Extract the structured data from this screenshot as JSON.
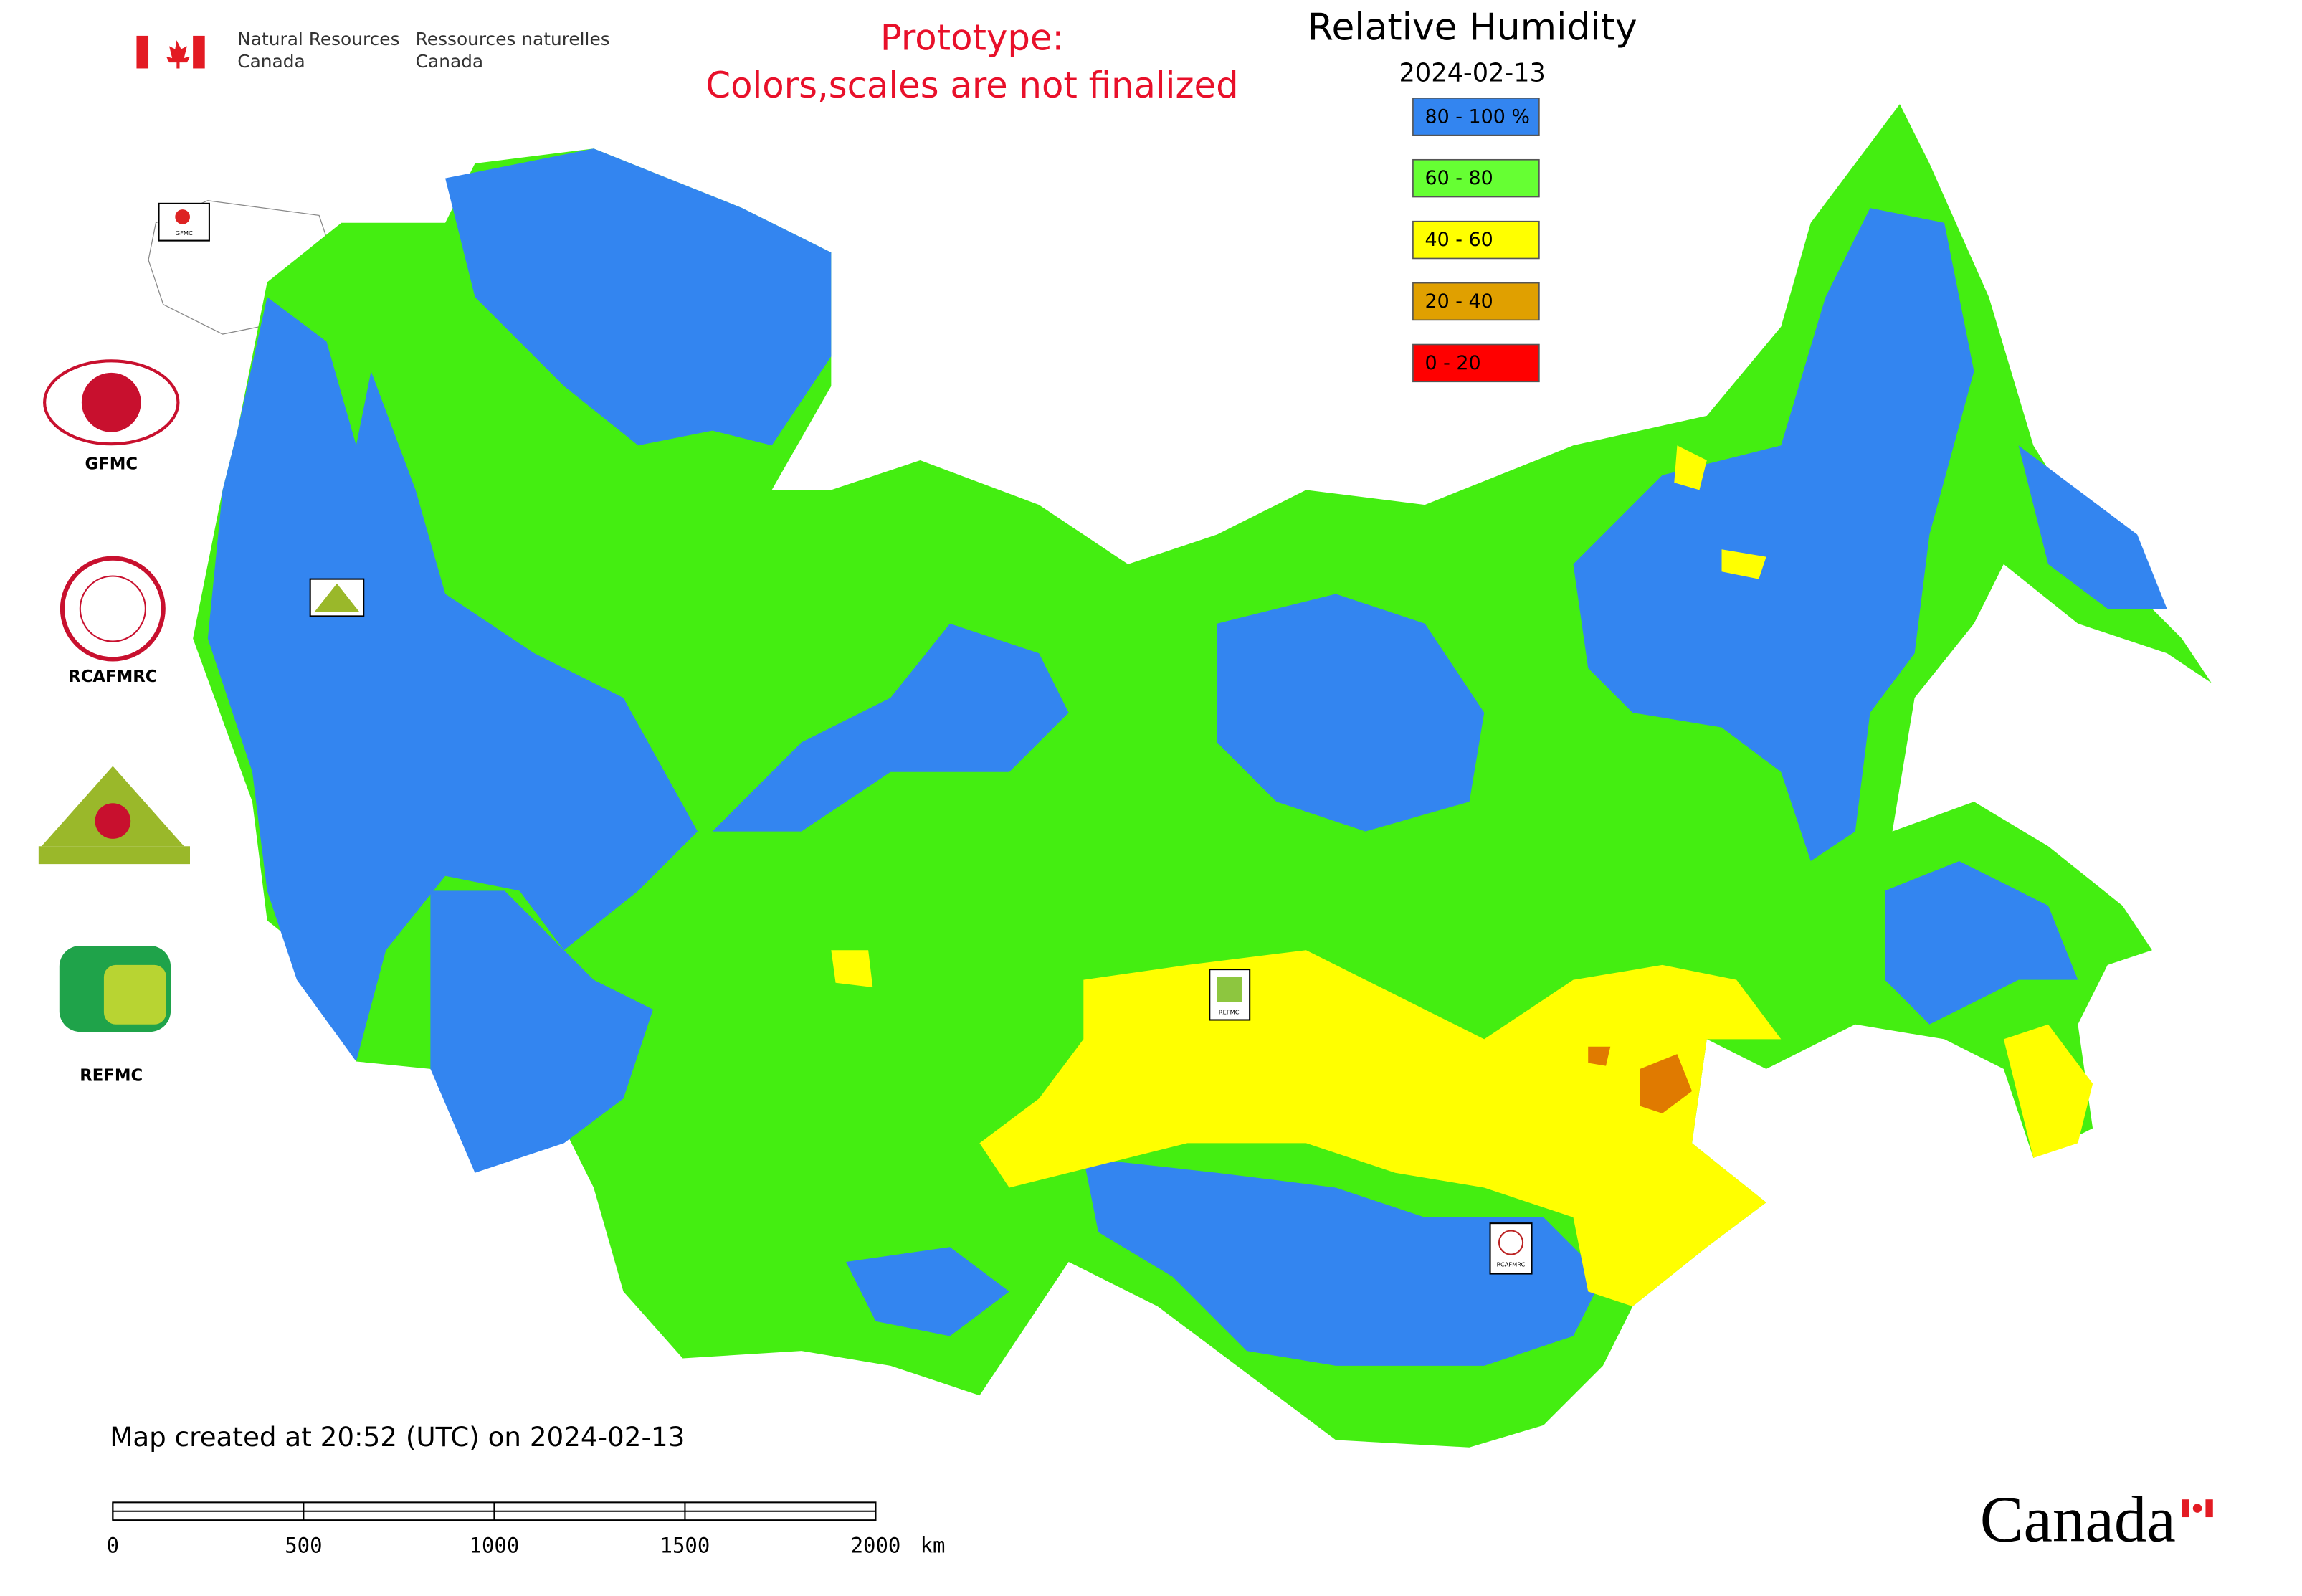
{
  "header": {
    "org_en": [
      "Natural Resources",
      "Canada"
    ],
    "org_fr": [
      "Ressources naturelles",
      "Canada"
    ],
    "notice": [
      "Prototype:",
      "Colors,scales are not finalized"
    ]
  },
  "title": "Relative Humidity",
  "date": "2024-02-13",
  "legend": [
    {
      "label": "80 - 100 %",
      "color": "#3385f0"
    },
    {
      "label": "60 - 80",
      "color": "#66ff33"
    },
    {
      "label": "40 - 60",
      "color": "#ffff00"
    },
    {
      "label": "20 - 40",
      "color": "#e0a000"
    },
    {
      "label": "0 - 20",
      "color": "#ff0000"
    }
  ],
  "logos": [
    "GFMC",
    "RCAFMRC",
    "REFMC"
  ],
  "map_labels": [
    "GFMC",
    "REFMC",
    "RCAFMRC"
  ],
  "footer": "Map created at 20:52 (UTC) on 2024-02-13",
  "scale_bar": {
    "ticks": [
      0,
      500,
      1000,
      1500,
      2000
    ],
    "unit": "km"
  },
  "wordmark": "Canada"
}
